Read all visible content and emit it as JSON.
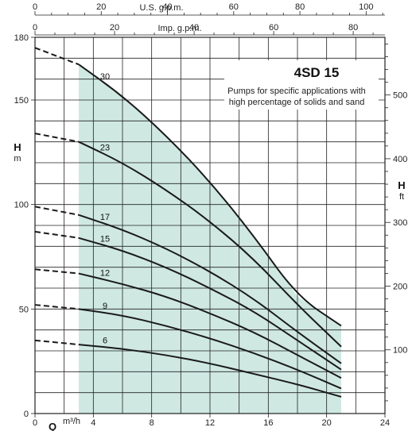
{
  "chart_data": {
    "type": "line",
    "title": "4SD 15",
    "subtitle_lines": [
      "Pumps for specific applications with",
      "high percentage of solids and sand"
    ],
    "xlabel": "Q",
    "x_unit": "m³/h",
    "xlim": [
      0,
      24
    ],
    "x_ticks": [
      0,
      4,
      8,
      12,
      16,
      20,
      24
    ],
    "ylabel": "H",
    "y_unit": "m",
    "ylim": [
      0,
      180
    ],
    "y_ticks": [
      0,
      50,
      100,
      150,
      180
    ],
    "right_axis": {
      "label": "H",
      "unit": "ft",
      "ticks": [
        100,
        200,
        300,
        400,
        500
      ]
    },
    "top_axis_usgpm": {
      "label": "U.S. g.p.m.",
      "ticks": [
        0,
        20,
        40,
        60,
        80,
        100
      ]
    },
    "top_axis_impgpm": {
      "label": "Imp. g.p.m.",
      "ticks": [
        0,
        20,
        40,
        60,
        80
      ]
    },
    "recommended_range": [
      3,
      21
    ],
    "grid": true,
    "series": [
      {
        "name": "30",
        "x": [
          0,
          3,
          6,
          9,
          12,
          15,
          18,
          21
        ],
        "y": [
          175,
          167,
          152,
          133,
          111,
          85,
          56,
          42
        ]
      },
      {
        "name": "23",
        "x": [
          0,
          3,
          6,
          9,
          12,
          15,
          18,
          21
        ],
        "y": [
          134,
          130,
          120,
          107,
          92,
          74,
          52,
          32
        ]
      },
      {
        "name": "17",
        "x": [
          0,
          3,
          6,
          9,
          12,
          15,
          18,
          21
        ],
        "y": [
          99,
          95,
          88,
          79,
          68,
          55,
          39,
          24
        ]
      },
      {
        "name": "15",
        "x": [
          0,
          3,
          6,
          9,
          12,
          15,
          18,
          21
        ],
        "y": [
          87,
          84,
          78,
          70,
          60,
          49,
          35,
          21
        ]
      },
      {
        "name": "12",
        "x": [
          0,
          3,
          6,
          9,
          12,
          15,
          18,
          21
        ],
        "y": [
          69,
          67,
          62,
          56,
          48,
          39,
          28,
          17
        ]
      },
      {
        "name": "9",
        "x": [
          0,
          3,
          6,
          9,
          12,
          15,
          18,
          21
        ],
        "y": [
          52,
          50,
          47,
          42,
          36,
          29,
          21,
          12
        ]
      },
      {
        "name": "6",
        "x": [
          0,
          3,
          6,
          9,
          12,
          15,
          18,
          21
        ],
        "y": [
          35,
          33,
          31,
          28,
          24,
          19,
          14,
          8
        ]
      }
    ]
  }
}
